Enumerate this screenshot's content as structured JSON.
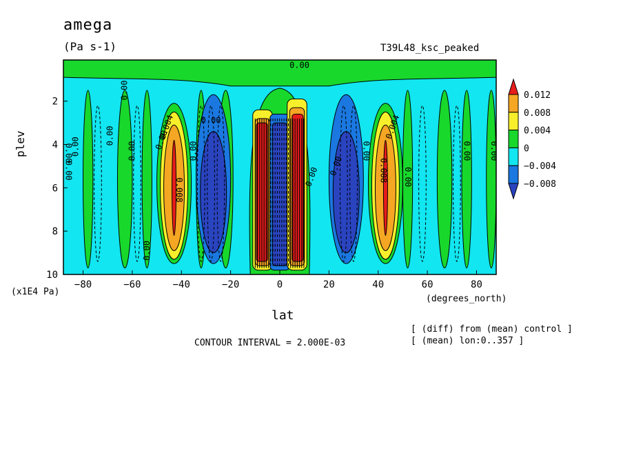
{
  "header": {
    "title": "amega",
    "units": "(Pa s-1)",
    "run_name": "T39L48_ksc_peaked"
  },
  "footer": {
    "contour_interval": "CONTOUR INTERVAL = 2.000E-03",
    "note_diff": "[ (diff) from (mean) control ]",
    "note_mean": "[ (mean) lon:0..357 ]"
  },
  "colors": {
    "red": "#e81c1c",
    "orange": "#f5a623",
    "yellow": "#f7ef2b",
    "green": "#18d82c",
    "cyan": "#12e6f0",
    "blue": "#1a78e0",
    "darkblue": "#2a44c0"
  },
  "chart_data": {
    "type": "heatmap",
    "title": "amega",
    "units": "(Pa s-1)",
    "xlabel": "lat",
    "x_unit": "(degrees_north)",
    "ylabel": "plev",
    "y_unit": "(x1E4 Pa)",
    "xlim": [
      -88,
      88
    ],
    "ylim": [
      10,
      0.1
    ],
    "x_ticks": [
      -80,
      -60,
      -40,
      -20,
      0,
      20,
      40,
      60,
      80
    ],
    "y_ticks": [
      2,
      4,
      6,
      8,
      10
    ],
    "contour_interval": 0.002,
    "colorbar": {
      "labels": [
        "0.012",
        "0.008",
        "0.004",
        "0",
        "−0.004",
        "−0.008"
      ],
      "bins": [
        {
          "range": [
            0.012,
            null
          ],
          "color": "red"
        },
        {
          "range": [
            0.008,
            0.012
          ],
          "color": "orange"
        },
        {
          "range": [
            0.004,
            0.008
          ],
          "color": "yellow"
        },
        {
          "range": [
            0.0,
            0.004
          ],
          "color": "green"
        },
        {
          "range": [
            -0.004,
            0.0
          ],
          "color": "cyan"
        },
        {
          "range": [
            -0.008,
            -0.004
          ],
          "color": "blue"
        },
        {
          "range": [
            null,
            -0.008
          ],
          "color": "darkblue"
        }
      ]
    },
    "contour_labels": [
      {
        "text": "0.00",
        "lat": -28,
        "plev": 2.9,
        "rotate": 0
      },
      {
        "text": "0.00",
        "lat": -48,
        "plev": 3.8,
        "rotate": -70
      },
      {
        "text": "0.00",
        "lat": -63,
        "plev": 1.5,
        "rotate": -90
      },
      {
        "text": "0.00",
        "lat": -69,
        "plev": 3.6,
        "rotate": -90
      },
      {
        "text": "0.00",
        "lat": -60,
        "plev": 4.3,
        "rotate": -90
      },
      {
        "text": "0.00",
        "lat": -83,
        "plev": 4.1,
        "rotate": -90
      },
      {
        "text": "0.00",
        "lat": -86,
        "plev": 4.4,
        "rotate": 90
      },
      {
        "text": "0.00",
        "lat": -86,
        "plev": 5.2,
        "rotate": 90
      },
      {
        "text": "0.004",
        "lat": -46,
        "plev": 3.2,
        "rotate": -70
      },
      {
        "text": "0.008",
        "lat": -41,
        "plev": 6.1,
        "rotate": 90
      },
      {
        "text": "0.00",
        "lat": -54,
        "plev": 8.9,
        "rotate": -90
      },
      {
        "text": "0.00",
        "lat": -35,
        "plev": 4.3,
        "rotate": -90
      },
      {
        "text": "0.00",
        "lat": 8,
        "plev": 0.35,
        "rotate": 0
      },
      {
        "text": "0.004",
        "lat": 46,
        "plev": 3.2,
        "rotate": -70
      },
      {
        "text": "0.008",
        "lat": 42,
        "plev": 5.2,
        "rotate": 90
      },
      {
        "text": "0.00",
        "lat": 35,
        "plev": 4.3,
        "rotate": 90
      },
      {
        "text": "0.00",
        "lat": 52,
        "plev": 5.5,
        "rotate": 90
      },
      {
        "text": "0.00",
        "lat": 76,
        "plev": 4.3,
        "rotate": 90
      },
      {
        "text": "0.00",
        "lat": 87,
        "plev": 4.3,
        "rotate": 90
      },
      {
        "text": "0.00",
        "lat": 13,
        "plev": 5.5,
        "rotate": -70
      },
      {
        "text": "0.00",
        "lat": 23,
        "plev": 5.0,
        "rotate": -70
      }
    ]
  }
}
